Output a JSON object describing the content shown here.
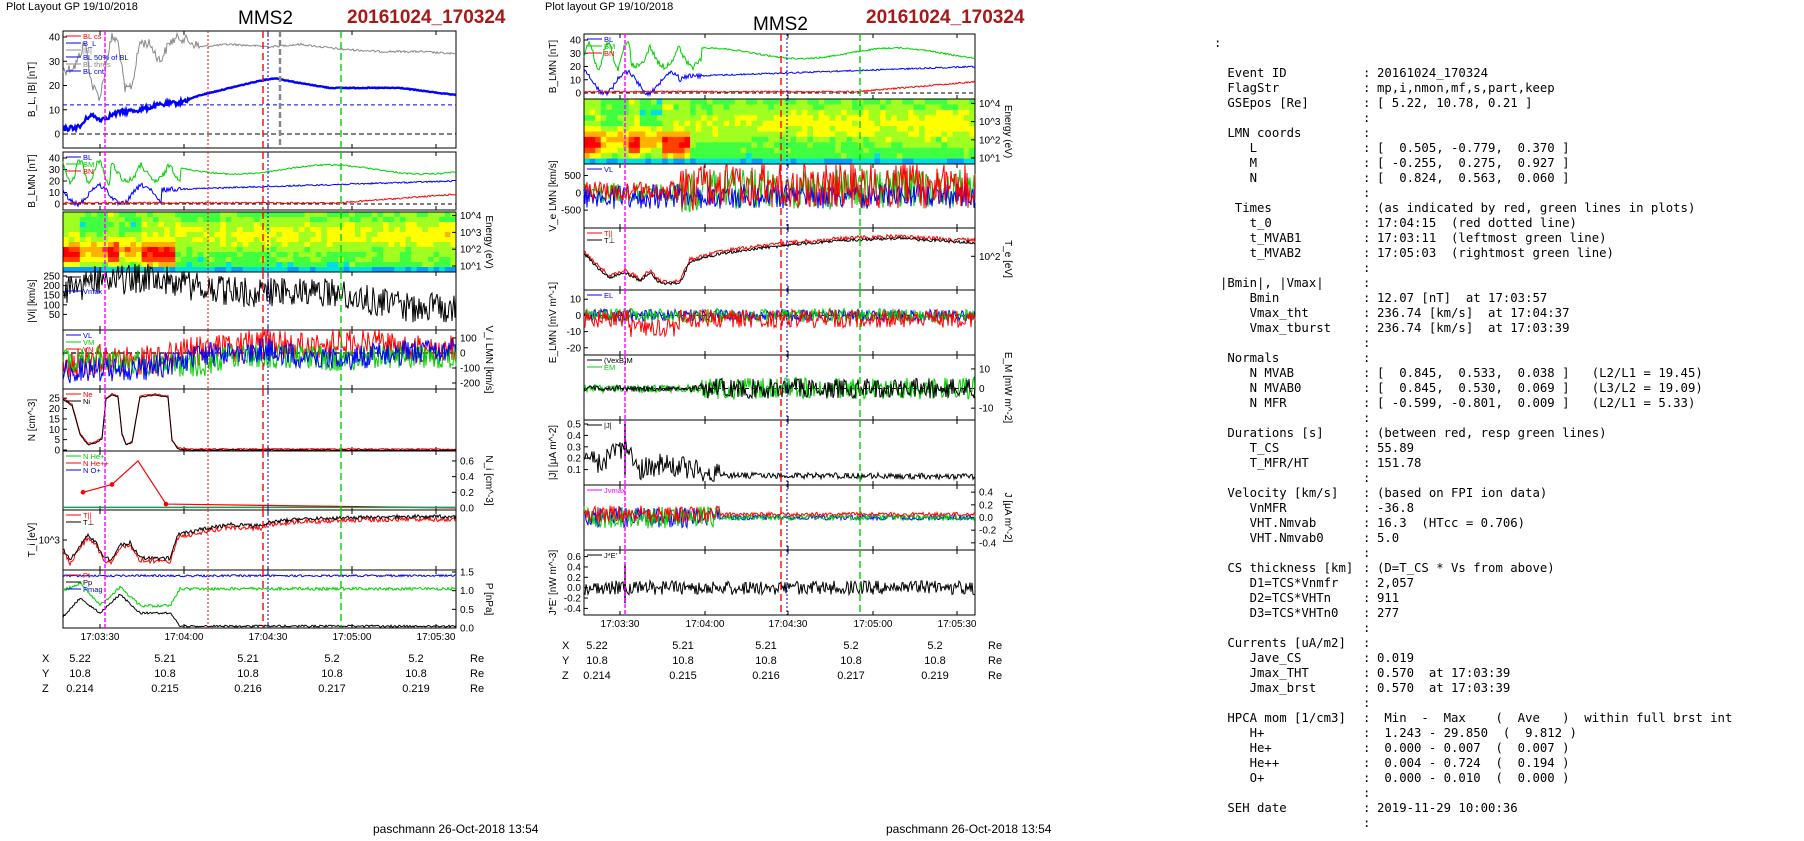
{
  "left": {
    "header": "Plot Layout GP 19/10/2018",
    "spacecraft": "MMS2",
    "event": "20161024_170324",
    "footer": "paschmann 26-Oct-2018 13:54",
    "time_ticks": [
      "17:03:30",
      "17:04:00",
      "17:04:30",
      "17:05:00",
      "17:05:30"
    ],
    "coords": {
      "X": [
        "5.22",
        "5.21",
        "5.21",
        "5.2",
        "5.2"
      ],
      "Y": [
        "10.8",
        "10.8",
        "10.8",
        "10.8",
        "10.8"
      ],
      "Z": [
        "0.214",
        "0.215",
        "0.216",
        "0.217",
        "0.219"
      ],
      "unit": "Re"
    },
    "panels": {
      "b_mag": {
        "ylabel": "B_L, |B| [nT]",
        "ticks": [
          "0",
          "10",
          "20",
          "30",
          "40"
        ],
        "legend": [
          "BL cs",
          "B_L",
          "|B|",
          "BL 50% of BL",
          "BL thres",
          "BL cnt"
        ]
      },
      "b_lmn": {
        "ylabel": "B_LMN [nT]",
        "ticks": [
          "0",
          "10",
          "20",
          "30",
          "40"
        ],
        "legend": [
          "BL",
          "BM",
          "BN"
        ]
      },
      "energy": {
        "ylabel": "Energy (eV)",
        "ticks": [
          "10^1",
          "10^2",
          "10^3",
          "10^4"
        ]
      },
      "vi_mag": {
        "ylabel": "|Vi| [km/s]",
        "ticks": [
          "50",
          "100",
          "150",
          "200",
          "250"
        ],
        "legend": [
          "|Vi|",
          "Vt",
          "Vmax"
        ]
      },
      "vi_lmn": {
        "ylabel": "V_i LMN [km/s]",
        "ticks": [
          "100",
          "0",
          "-100",
          "-200"
        ],
        "legend": [
          "VL",
          "VM",
          "VN"
        ]
      },
      "density": {
        "ylabel": "N [cm^-3]",
        "ticks": [
          "0",
          "5",
          "10",
          "15",
          "20",
          "25"
        ],
        "legend": [
          "Ne",
          "Ni"
        ]
      },
      "minor_ions": {
        "ylabel": "N_i [cm^-3]",
        "ticks": [
          "0.0",
          "0.2",
          "0.4",
          "0.6"
        ],
        "legend": [
          "N He+",
          "N He++",
          "N O+"
        ]
      },
      "temp": {
        "ylabel": "T_i [eV]",
        "ticks": [
          "10^3"
        ],
        "legend": [
          "T||",
          "T⊥"
        ]
      },
      "pressure": {
        "ylabel": "P [nPa]",
        "ticks": [
          "0.0",
          "0.5",
          "1.0",
          "1.5"
        ],
        "legend": [
          "Pt",
          "Pp",
          "Pmag"
        ]
      }
    }
  },
  "right": {
    "header": "Plot layout GP 19/10/2018",
    "spacecraft": "MMS2",
    "event": "20161024_170324",
    "footer": "paschmann 26-Oct-2018 13:54",
    "time_ticks": [
      "17:03:30",
      "17:04:00",
      "17:04:30",
      "17:05:00",
      "17:05:30"
    ],
    "coords": {
      "X": [
        "5.22",
        "5.21",
        "5.21",
        "5.2",
        "5.2"
      ],
      "Y": [
        "10.8",
        "10.8",
        "10.8",
        "10.8",
        "10.8"
      ],
      "Z": [
        "0.214",
        "0.215",
        "0.216",
        "0.217",
        "0.219"
      ],
      "unit": "Re"
    },
    "panels": {
      "b_lmn": {
        "ylabel": "B_LMN [nT]",
        "ticks": [
          "0",
          "10",
          "20",
          "30",
          "40"
        ],
        "legend": [
          "BL",
          "BM",
          "BN"
        ]
      },
      "energy": {
        "ylabel": "Energy (eV)",
        "ticks": [
          "10^1",
          "10^2",
          "10^3",
          "10^4"
        ]
      },
      "ve_lmn": {
        "ylabel": "V_e LMN [km/s]",
        "ticks": [
          "500",
          "0",
          "-500"
        ],
        "legend": [
          "VL"
        ]
      },
      "te": {
        "ylabel": "T_e [eV]",
        "ticks": [
          "10^2"
        ],
        "legend": [
          "T||",
          "T⊥"
        ]
      },
      "e_lmn": {
        "ylabel": "E_LMN [mV m^-1]",
        "ticks": [
          "10",
          "0",
          "-10",
          "-20"
        ],
        "legend": [
          "EL"
        ]
      },
      "em": {
        "ylabel": "E_M [mW m^-2]",
        "ticks": [
          "10",
          "0",
          "-10"
        ],
        "legend": [
          "(VexB)M",
          "EM"
        ]
      },
      "jmag": {
        "ylabel": "|J| [μA m^-2]",
        "ticks": [
          "0.1",
          "0.2",
          "0.3",
          "0.4",
          "0.5"
        ],
        "legend": [
          "|J|"
        ]
      },
      "jlmn": {
        "ylabel": "J [μA m^-2]",
        "ticks": [
          "0.4",
          "0.2",
          "0.0",
          "-0.2",
          "-0.4"
        ],
        "legend": [
          "Jvmax"
        ]
      },
      "jdote": {
        "ylabel": "J*E' [nW m^-3]",
        "ticks": [
          "0.6",
          "0.4",
          "0.2",
          "0.0",
          "-0.2",
          "-0.4"
        ],
        "legend": [
          "J*E'"
        ]
      }
    }
  },
  "info": {
    "top_mark": ":",
    "rows": [
      {
        "k": " Event ID",
        "v": "20161024_170324"
      },
      {
        "k": " FlagStr",
        "v": "mp,i,nmon,mf,s,part,keep"
      },
      {
        "k": " GSEpos [Re]",
        "v": "[ 5.22, 10.78, 0.21 ]"
      },
      {
        "k": "",
        "v": ""
      },
      {
        "k": " LMN coords",
        "v": ""
      },
      {
        "k": "    L",
        "v": "[  0.505, -0.779,  0.370 ]"
      },
      {
        "k": "    M",
        "v": "[ -0.255,  0.275,  0.927 ]"
      },
      {
        "k": "    N",
        "v": "[  0.824,  0.563,  0.060 ]"
      },
      {
        "k": "",
        "v": ""
      },
      {
        "k": "  Times",
        "v": "(as indicated by red, green lines in plots)"
      },
      {
        "k": "    t_0",
        "v": "17:04:15  (red dotted line)"
      },
      {
        "k": "    t_MVAB1",
        "v": "17:03:11  (leftmost green line)"
      },
      {
        "k": "    t_MVAB2",
        "v": "17:05:03  (rightmost green line)"
      },
      {
        "k": "",
        "v": ""
      },
      {
        "k": "|Bmin|, |Vmax|",
        "v": ""
      },
      {
        "k": "    Bmin",
        "v": "12.07 [nT]  at 17:03:57"
      },
      {
        "k": "    Vmax_tht",
        "v": "236.74 [km/s]  at 17:04:37"
      },
      {
        "k": "    Vmax_tburst",
        "v": "236.74 [km/s]  at 17:03:39"
      },
      {
        "k": "",
        "v": ""
      },
      {
        "k": " Normals",
        "v": ""
      },
      {
        "k": "    N MVAB",
        "v": "[  0.845,  0.533,  0.038 ]   (L2/L1 = 19.45)"
      },
      {
        "k": "    N MVAB0",
        "v": "[  0.845,  0.530,  0.069 ]   (L3/L2 = 19.09)"
      },
      {
        "k": "    N MFR",
        "v": "[ -0.599, -0.801,  0.009 ]   (L2/L1 = 5.33)"
      },
      {
        "k": "",
        "v": ""
      },
      {
        "k": " Durations [s]",
        "v": "(between red, resp green lines)"
      },
      {
        "k": "    T_CS",
        "v": "55.89"
      },
      {
        "k": "    T_MFR/HT",
        "v": "151.78"
      },
      {
        "k": "",
        "v": ""
      },
      {
        "k": " Velocity [km/s]",
        "v": "(based on FPI ion data)"
      },
      {
        "k": "    VnMFR",
        "v": "-36.8"
      },
      {
        "k": "    VHT.Nmvab",
        "v": "16.3  (HTcc = 0.706)"
      },
      {
        "k": "    VHT.Nmvab0",
        "v": "5.0"
      },
      {
        "k": "",
        "v": ""
      },
      {
        "k": " CS thickness [km]",
        "v": "(D=T_CS * Vs from above)"
      },
      {
        "k": "    D1=TCS*Vnmfr",
        "v": "2,057"
      },
      {
        "k": "    D2=TCS*VHTn",
        "v": "911"
      },
      {
        "k": "    D3=TCS*VHTn0",
        "v": "277"
      },
      {
        "k": "",
        "v": ""
      },
      {
        "k": " Currents [uA/m2]",
        "v": ""
      },
      {
        "k": "    Jave_CS",
        "v": "0.019"
      },
      {
        "k": "    Jmax_THT",
        "v": "0.570  at 17:03:39"
      },
      {
        "k": "    Jmax_brst",
        "v": "0.570  at 17:03:39"
      },
      {
        "k": "",
        "v": ""
      },
      {
        "k": " HPCA mom [1/cm3]",
        "v": " Min  -  Max    (  Ave   )  within full brst int"
      },
      {
        "k": "    H+",
        "v": " 1.243 - 29.850  (  9.812 )"
      },
      {
        "k": "    He+",
        "v": " 0.000 - 0.007  (  0.007 )"
      },
      {
        "k": "    He++",
        "v": " 0.004 - 0.724  (  0.194 )"
      },
      {
        "k": "    O+",
        "v": " 0.000 - 0.010  (  0.000 )"
      },
      {
        "k": "",
        "v": ""
      },
      {
        "k": " SEH date",
        "v": "2019-11-29 10:00:36"
      },
      {
        "k": "",
        "v": ""
      }
    ]
  },
  "colors": {
    "red": "#ff0000",
    "green": "#00d000",
    "blue": "#0000ff",
    "gray": "#888888",
    "magenta": "#ff00ff",
    "black": "#000000",
    "title_red": "#a81818"
  },
  "chart_data": [
    {
      "type": "line",
      "title": "MMS2 20161024_170324",
      "xlabel": "",
      "xlim": [
        "17:03:23",
        "17:05:50"
      ],
      "series": [
        {
          "name": "|B|",
          "panel": "b_mag",
          "x": [
            "17:03:25",
            "17:03:35",
            "17:03:45",
            "17:04:00",
            "17:04:15",
            "17:04:30",
            "17:05:00",
            "17:05:30",
            "17:05:50"
          ],
          "values": [
            25,
            40,
            20,
            38,
            33,
            36,
            35,
            33,
            33
          ]
        },
        {
          "name": "B_L",
          "panel": "b_mag",
          "x": [
            "17:03:25",
            "17:03:35",
            "17:03:45",
            "17:04:00",
            "17:04:15",
            "17:04:30",
            "17:04:45",
            "17:05:00",
            "17:05:30",
            "17:05:50"
          ],
          "values": [
            2,
            5,
            9,
            12,
            18,
            22,
            21,
            19,
            19,
            17
          ]
        },
        {
          "name": "Ne",
          "panel": "density",
          "x": [
            "17:03:25",
            "17:03:30",
            "17:03:35",
            "17:03:38",
            "17:03:41",
            "17:03:45",
            "17:03:50",
            "17:03:55",
            "17:04:00",
            "17:04:05",
            "17:05:50"
          ],
          "values": [
            25,
            5,
            3,
            25,
            25,
            3,
            25,
            25,
            25,
            1,
            0.5
          ]
        },
        {
          "name": "N He++",
          "panel": "minor_ions",
          "x": [
            "17:03:25",
            "17:03:35",
            "17:03:45",
            "17:03:55",
            "17:04:05",
            "17:05:50"
          ],
          "values": [
            0.2,
            0.3,
            0.38,
            0.6,
            0.05,
            0.0
          ]
        }
      ]
    }
  ]
}
